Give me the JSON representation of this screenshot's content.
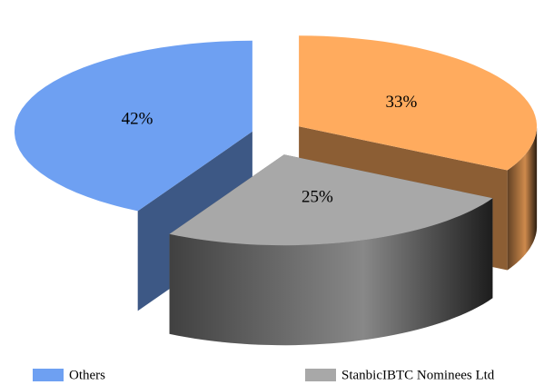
{
  "chart_data": {
    "type": "pie",
    "categories": [
      "Others",
      null,
      "StanbicIBTC Nominees Ltd"
    ],
    "values": [
      42,
      33,
      25
    ],
    "value_labels": [
      "42%",
      "33%",
      "25%"
    ],
    "colors": [
      "#6ea0f2",
      "#ffab5e",
      "#a8a8a8"
    ],
    "legend": "bottom"
  }
}
